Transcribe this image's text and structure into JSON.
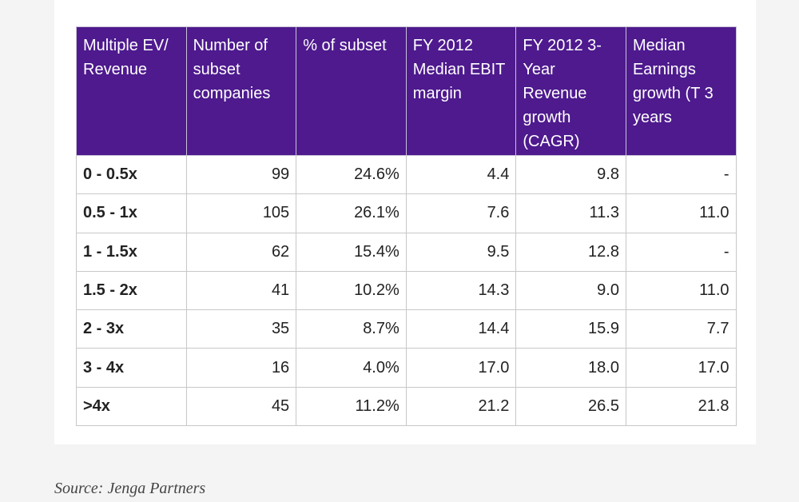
{
  "table": {
    "header": [
      "Multiple EV/ Revenue",
      "Number of subset companies",
      "% of subset",
      "FY 2012 Median EBIT margin",
      "FY 2012 3-Year Revenue growth (CAGR)",
      "Median Earnings growth (T 3 years"
    ],
    "rows": [
      [
        "0 - 0.5x",
        "99",
        "24.6%",
        "4.4",
        "9.8",
        "-"
      ],
      [
        "0.5 - 1x",
        "105",
        "26.1%",
        "7.6",
        "11.3",
        "11.0"
      ],
      [
        "1 - 1.5x",
        "62",
        "15.4%",
        "9.5",
        "12.8",
        "-"
      ],
      [
        "1.5 - 2x",
        "41",
        "10.2%",
        "14.3",
        "9.0",
        "11.0"
      ],
      [
        "2 - 3x",
        "35",
        "8.7%",
        "14.4",
        "15.9",
        "7.7"
      ],
      [
        "3 - 4x",
        "16",
        "4.0%",
        "17.0",
        "18.0",
        "17.0"
      ],
      [
        ">4x",
        "45",
        "11.2%",
        "21.2",
        "26.5",
        "21.8"
      ]
    ]
  },
  "source": "Source: Jenga Partners"
}
